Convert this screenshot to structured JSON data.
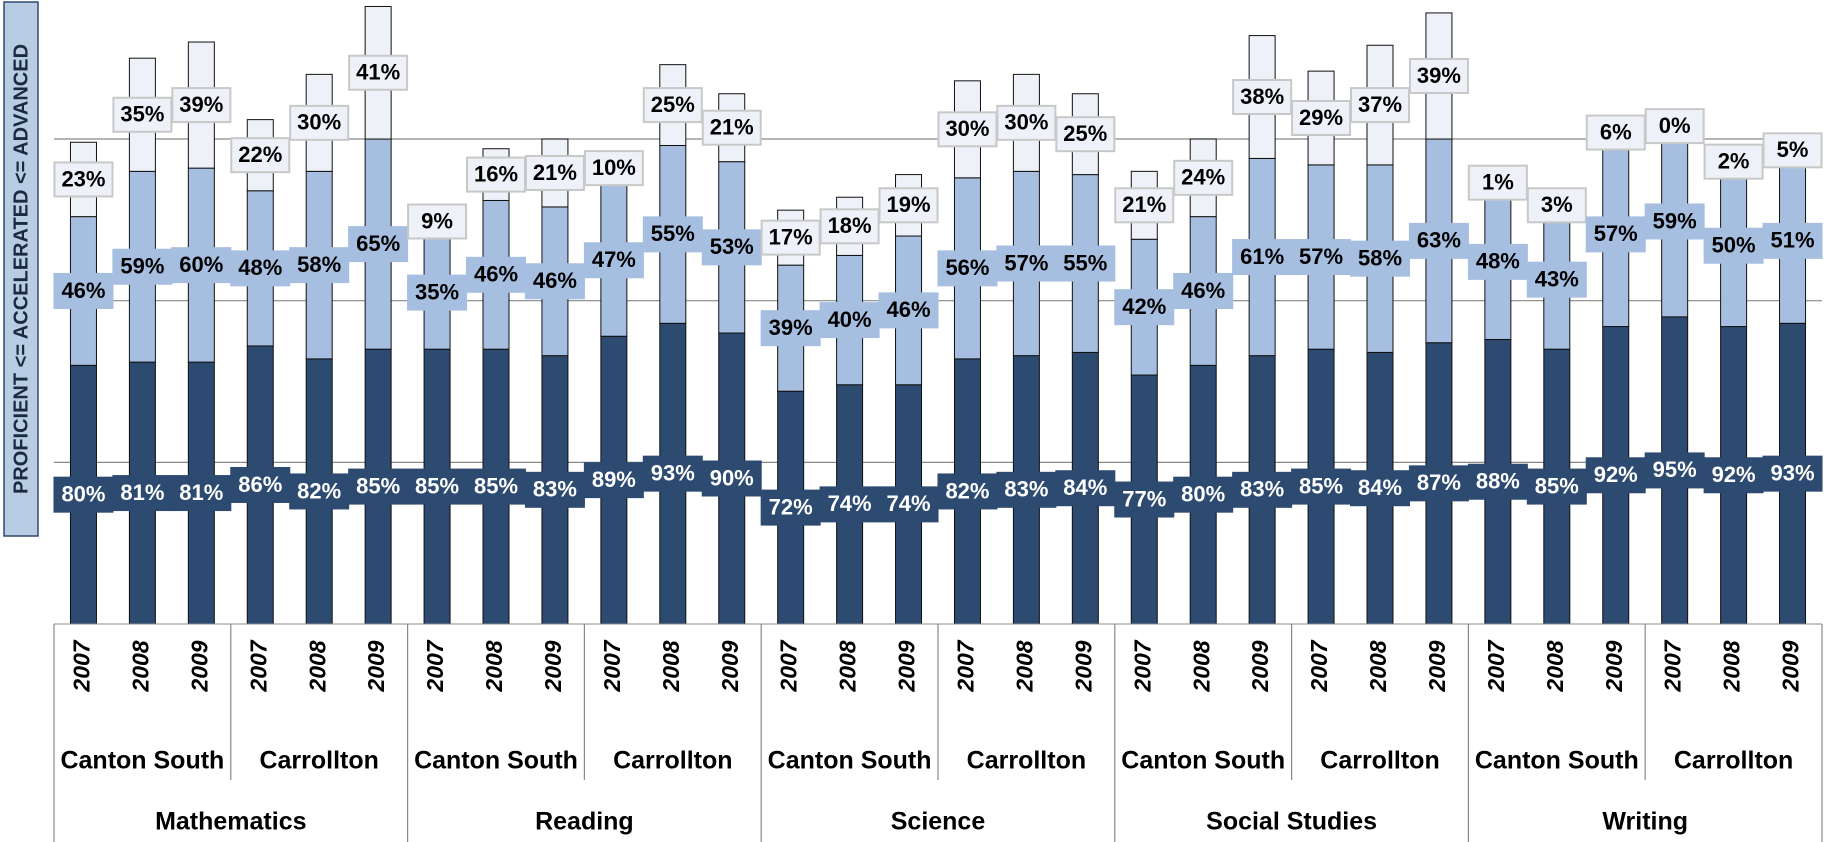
{
  "chart_data": {
    "type": "stacked_bar",
    "y_axis_label": "PROFICIENT <= ACCELERATED <= ADVANCED",
    "categories": [
      "2007",
      "2008",
      "2009",
      "2007",
      "2008",
      "2009",
      "2007",
      "2008",
      "2009",
      "2007",
      "2008",
      "2009",
      "2007",
      "2008",
      "2009",
      "2007",
      "2008",
      "2009",
      "2007",
      "2008",
      "2009",
      "2007",
      "2008",
      "2009",
      "2007",
      "2008",
      "2009",
      "2007",
      "2008",
      "2009"
    ],
    "school_labels": [
      "Canton South",
      "Carrollton",
      "Canton South",
      "Carrollton",
      "Canton South",
      "Carrollton",
      "Canton South",
      "Carrollton",
      "Canton South",
      "Carrollton"
    ],
    "subject_labels": [
      "Mathematics",
      "Reading",
      "Science",
      "Social Studies",
      "Writing"
    ],
    "ylim": [
      0,
      193
    ],
    "gridlines": [
      50,
      100,
      150
    ],
    "series": [
      {
        "color": "#2d4a70",
        "label_color": "#ffffff",
        "values": [
          80,
          81,
          81,
          86,
          82,
          85,
          85,
          85,
          83,
          89,
          93,
          90,
          72,
          74,
          74,
          82,
          83,
          84,
          77,
          80,
          83,
          85,
          84,
          87,
          88,
          85,
          92,
          95,
          92,
          93
        ],
        "value_labels": [
          "80%",
          "81%",
          "81%",
          "86%",
          "82%",
          "85%",
          "85%",
          "85%",
          "83%",
          "89%",
          "93%",
          "90%",
          "72%",
          "74%",
          "74%",
          "82%",
          "83%",
          "84%",
          "77%",
          "80%",
          "83%",
          "85%",
          "84%",
          "87%",
          "88%",
          "85%",
          "92%",
          "95%",
          "92%",
          "93%"
        ]
      },
      {
        "color": "#a6bedf",
        "label_color": "#000000",
        "values": [
          46,
          59,
          60,
          48,
          58,
          65,
          35,
          46,
          46,
          47,
          55,
          53,
          39,
          40,
          46,
          56,
          57,
          55,
          42,
          46,
          61,
          57,
          58,
          63,
          48,
          43,
          57,
          59,
          50,
          51
        ],
        "value_labels": [
          "46%",
          "59%",
          "60%",
          "48%",
          "58%",
          "65%",
          "35%",
          "46%",
          "46%",
          "47%",
          "55%",
          "53%",
          "39%",
          "40%",
          "46%",
          "56%",
          "57%",
          "55%",
          "42%",
          "46%",
          "61%",
          "57%",
          "58%",
          "63%",
          "48%",
          "43%",
          "57%",
          "59%",
          "50%",
          "51%"
        ]
      },
      {
        "color": "#eef2f8",
        "label_color": "#000000",
        "values": [
          23,
          35,
          39,
          22,
          30,
          41,
          9,
          16,
          21,
          10,
          25,
          21,
          17,
          18,
          19,
          30,
          30,
          25,
          21,
          24,
          38,
          29,
          37,
          39,
          1,
          3,
          6,
          0,
          2,
          5
        ],
        "value_labels": [
          "23%",
          "35%",
          "39%",
          "22%",
          "30%",
          "41%",
          "9%",
          "16%",
          "21%",
          "10%",
          "25%",
          "21%",
          "17%",
          "18%",
          "19%",
          "30%",
          "30%",
          "25%",
          "21%",
          "24%",
          "38%",
          "29%",
          "37%",
          "39%",
          "1%",
          "3%",
          "6%",
          "0%",
          "2%",
          "5%"
        ]
      }
    ]
  }
}
